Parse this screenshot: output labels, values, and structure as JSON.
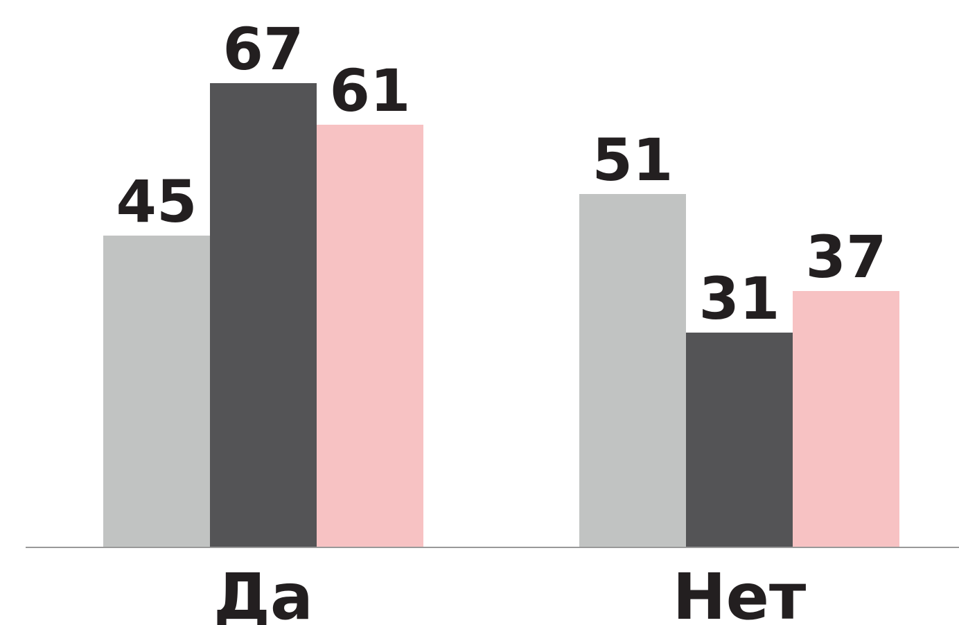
{
  "chart_data": {
    "type": "bar",
    "categories": [
      "Да",
      "Нет"
    ],
    "series": [
      {
        "color": "#c1c3c2",
        "values": [
          45,
          51
        ]
      },
      {
        "color": "#545456",
        "values": [
          67,
          31
        ]
      },
      {
        "color": "#f7c2c3",
        "values": [
          61,
          37
        ]
      }
    ],
    "ylim": [
      0,
      70
    ]
  }
}
